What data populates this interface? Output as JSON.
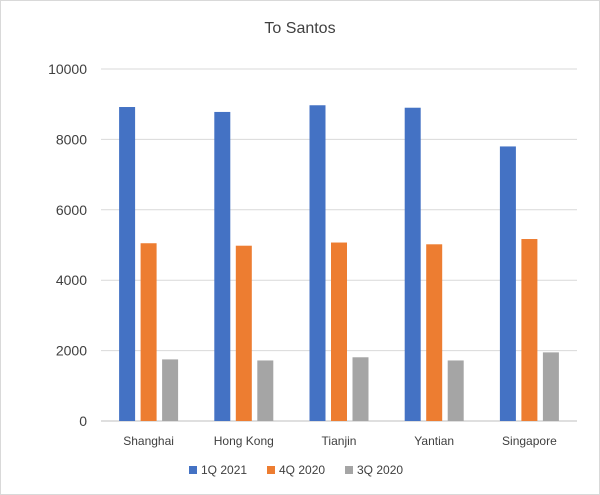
{
  "chart_data": {
    "type": "bar",
    "title": "To Santos",
    "xlabel": "",
    "ylabel": "",
    "categories": [
      "Shanghai",
      "Hong Kong",
      "Tianjin",
      "Yantian",
      "Singapore"
    ],
    "series": [
      {
        "name": "1Q 2021",
        "color": "#4472C4",
        "values": [
          8920,
          8780,
          8970,
          8900,
          7800
        ]
      },
      {
        "name": "4Q 2020",
        "color": "#ED7D31",
        "values": [
          5050,
          4980,
          5070,
          5020,
          5170
        ]
      },
      {
        "name": "3Q 2020",
        "color": "#A5A5A5",
        "values": [
          1750,
          1720,
          1810,
          1720,
          1950
        ]
      }
    ],
    "ylim": [
      0,
      10000
    ],
    "yticks": [
      0,
      2000,
      4000,
      6000,
      8000,
      10000
    ],
    "ytick_labels": [
      "0",
      "2000",
      "4000",
      "6000",
      "8000",
      "10000"
    ],
    "grid": true,
    "legend_position": "bottom"
  }
}
